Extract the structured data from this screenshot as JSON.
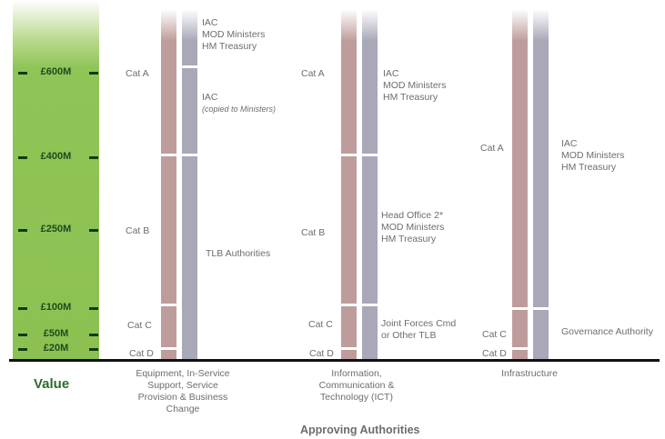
{
  "value_label": "Value",
  "axis_title": "Approving Authorities",
  "value_ticks": [
    "£600M",
    "£400M",
    "£250M",
    "£100M",
    "£50M",
    "£20M"
  ],
  "columns": [
    {
      "name": "Equipment, In-Service Support, Service Provision & Business Change",
      "name_lines": [
        "Equipment, In-Service",
        "Support, Service",
        "Provision & Business",
        "Change"
      ],
      "categories": [
        "Cat A",
        "Cat B",
        "Cat C",
        "Cat D"
      ],
      "authorities": [
        [
          "IAC",
          "MOD Ministers",
          "HM Treasury"
        ],
        [
          "IAC",
          "(copied to Ministers)"
        ],
        [
          "TLB Authorities"
        ]
      ]
    },
    {
      "name": "Information, Communication & Technology (ICT)",
      "name_lines": [
        "Information,",
        "Communication &",
        "Technology (ICT)"
      ],
      "categories": [
        "Cat A",
        "Cat B",
        "Cat C",
        "Cat D"
      ],
      "authorities": [
        [
          "IAC",
          "MOD Ministers",
          "HM Treasury"
        ],
        [
          "Head Office 2*",
          "MOD Ministers",
          "HM Treasury"
        ],
        [
          "Joint Forces Cmd",
          "or Other TLB"
        ]
      ]
    },
    {
      "name": "Infrastructure",
      "name_lines": [
        "Infrastructure"
      ],
      "categories": [
        "Cat A",
        "Cat C",
        "Cat D"
      ],
      "authorities": [
        [
          "IAC",
          "MOD Ministers",
          "HM Treasury"
        ],
        [
          "Governance Authority"
        ]
      ]
    }
  ],
  "colors": {
    "value_bar": "#8cc152",
    "category_bar": "#bf9c9c",
    "authority_bar": "#a8a8b8",
    "tick_mark": "#0f3b0f",
    "value_label": "#2e6b2e"
  }
}
